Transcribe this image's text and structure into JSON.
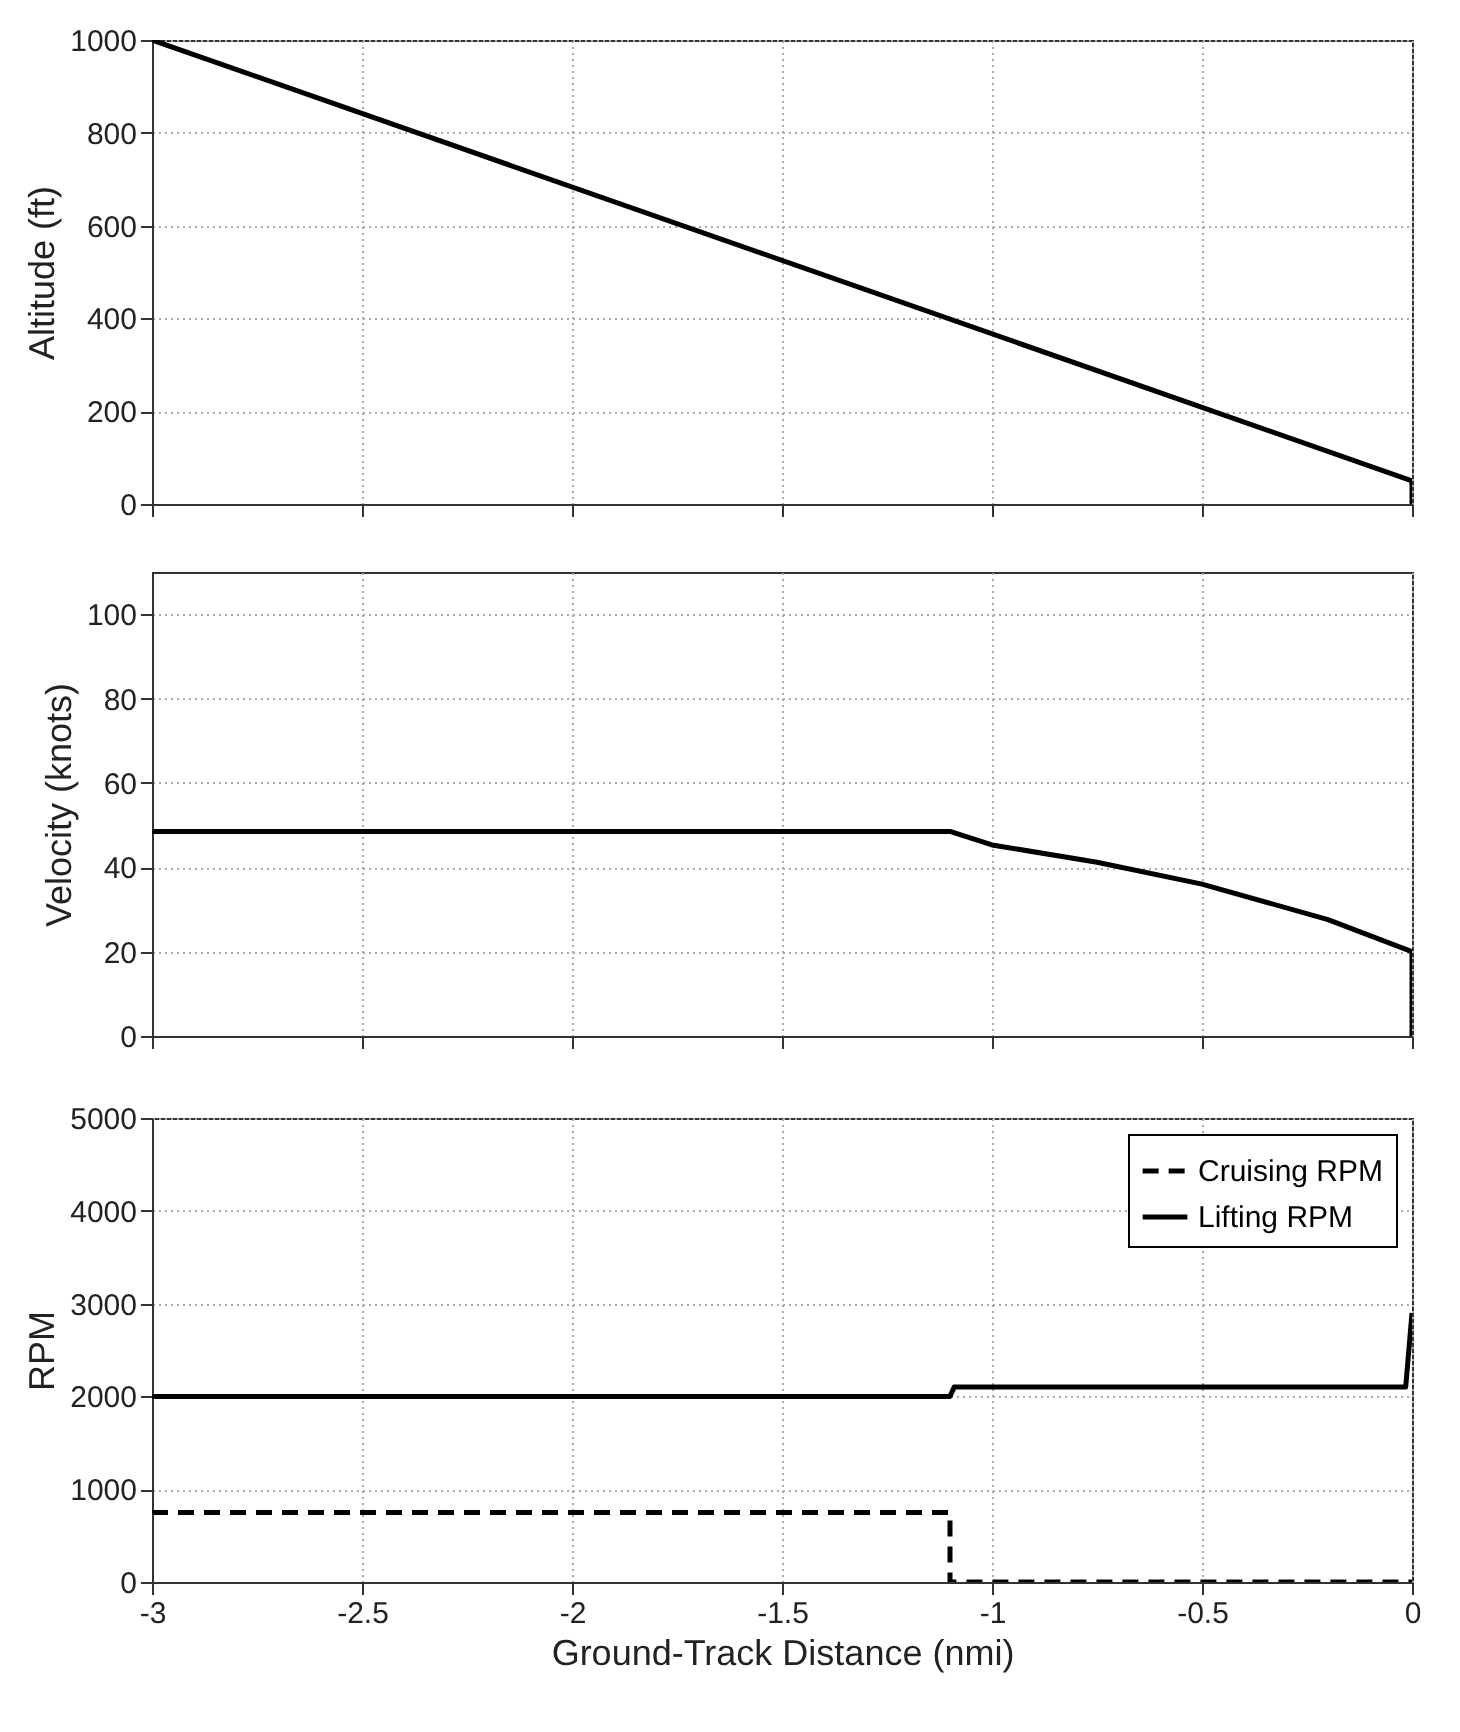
{
  "chart_data": [
    {
      "type": "line",
      "ylabel": "Altitude (ft)",
      "xlim": [
        -3,
        0
      ],
      "xticks": [
        -3,
        -2.5,
        -2,
        -1.5,
        -1,
        -0.5,
        0
      ],
      "ylim": [
        0,
        1000
      ],
      "yticks": [
        0,
        200,
        400,
        600,
        800,
        1000
      ],
      "grid": true,
      "tick_labels": "y",
      "series": [
        {
          "color": "#000000",
          "line_style": "solid",
          "x": [
            -3,
            0,
            0
          ],
          "values": [
            1000,
            50,
            0
          ]
        }
      ]
    },
    {
      "type": "line",
      "ylabel": "Velocity (knots)",
      "xlim": [
        -3,
        0
      ],
      "xticks": [
        -3,
        -2.5,
        -2,
        -1.5,
        -1,
        -0.5,
        0
      ],
      "ylim": [
        0,
        110
      ],
      "yticks": [
        0,
        20,
        40,
        60,
        80,
        100
      ],
      "grid": true,
      "tick_labels": "y",
      "series": [
        {
          "color": "#000000",
          "line_style": "solid",
          "x": [
            -3,
            -1.1,
            -1,
            -0.75,
            -0.5,
            -0.2,
            0,
            0
          ],
          "values": [
            48.5,
            48.5,
            45.3,
            41.2,
            36,
            27.6,
            20,
            0
          ]
        }
      ]
    },
    {
      "type": "line",
      "xlabel": "Ground-Track Distance (nmi)",
      "ylabel": "RPM",
      "xlim": [
        -3,
        0
      ],
      "xticks": [
        -3,
        -2.5,
        -2,
        -1.5,
        -1,
        -0.5,
        0
      ],
      "ylim": [
        0,
        5000
      ],
      "yticks": [
        0,
        1000,
        2000,
        3000,
        4000,
        5000
      ],
      "grid": true,
      "legend": "top right",
      "series": [
        {
          "name": "Cruising RPM",
          "color": "#000000",
          "line_style": "dashed",
          "x": [
            -3,
            -1.1,
            -1.1,
            0
          ],
          "values": [
            750,
            750,
            0,
            0
          ]
        },
        {
          "name": "Lifting RPM",
          "color": "#000000",
          "line_style": "solid",
          "x": [
            -3,
            -1.1,
            -1.09,
            -0.015,
            0
          ],
          "values": [
            2000,
            2000,
            2100,
            2100,
            2900
          ]
        }
      ]
    }
  ]
}
